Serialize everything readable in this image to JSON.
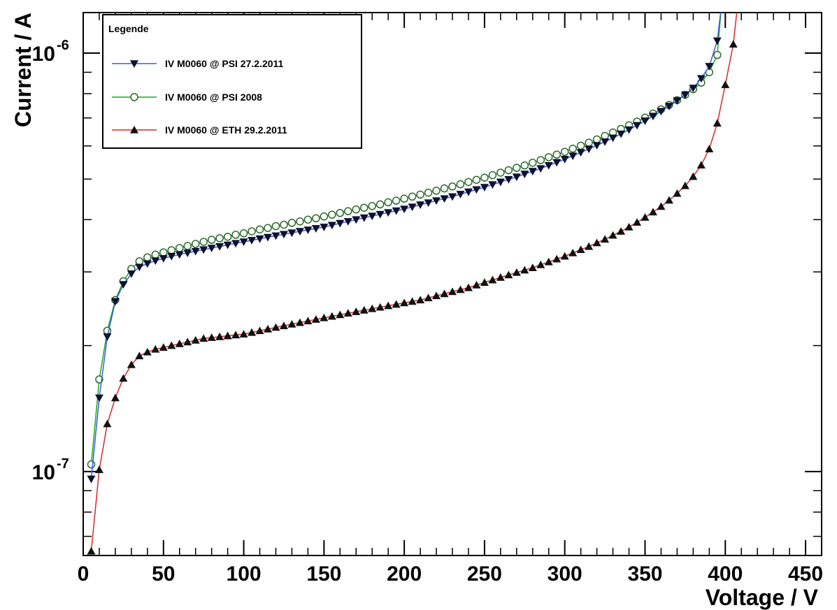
{
  "chart_data": {
    "type": "scatter",
    "xlabel": "Voltage / V",
    "ylabel": "Current / A",
    "xlim": [
      0,
      460
    ],
    "ylim": [
      6.3e-08,
      1.25e-06
    ],
    "ylog": true,
    "x_ticks": [
      0,
      50,
      100,
      150,
      200,
      250,
      300,
      350,
      400,
      450
    ],
    "x_tick_labels": [
      "0",
      "50",
      "100",
      "150",
      "200",
      "250",
      "300",
      "350",
      "400",
      "450"
    ],
    "y_ticks": [
      1e-07,
      1e-06
    ],
    "y_tick_labels": [
      {
        "base": "10",
        "exp": "-7"
      },
      {
        "base": "10",
        "exp": "-6"
      }
    ],
    "legend": {
      "title": "Legende",
      "position": "top-left"
    },
    "x": [
      5,
      10,
      15,
      20,
      25,
      30,
      35,
      40,
      45,
      50,
      55,
      60,
      65,
      70,
      75,
      80,
      85,
      90,
      95,
      100,
      105,
      110,
      115,
      120,
      125,
      130,
      135,
      140,
      145,
      150,
      155,
      160,
      165,
      170,
      175,
      180,
      185,
      190,
      195,
      200,
      205,
      210,
      215,
      220,
      225,
      230,
      235,
      240,
      245,
      250,
      255,
      260,
      265,
      270,
      275,
      280,
      285,
      290,
      295,
      300,
      305,
      310,
      315,
      320,
      325,
      330,
      335,
      340,
      345,
      350,
      355,
      360,
      365,
      370,
      375,
      380,
      385,
      390,
      395,
      400,
      405
    ],
    "series": [
      {
        "name": "IV M0060 @ PSI 27.2.2011",
        "color": "#3b5bdb",
        "marker": "triangle-down",
        "values": [
          9.6e-08,
          1.5e-07,
          2.1e-07,
          2.55e-07,
          2.8e-07,
          2.97e-07,
          3.08e-07,
          3.14e-07,
          3.19e-07,
          3.23e-07,
          3.27e-07,
          3.3e-07,
          3.33e-07,
          3.36e-07,
          3.39e-07,
          3.42e-07,
          3.45e-07,
          3.48e-07,
          3.51e-07,
          3.54e-07,
          3.57e-07,
          3.6e-07,
          3.63e-07,
          3.66e-07,
          3.69e-07,
          3.72e-07,
          3.75e-07,
          3.78e-07,
          3.81e-07,
          3.84e-07,
          3.88e-07,
          3.92e-07,
          3.96e-07,
          4e-07,
          4.04e-07,
          4.08e-07,
          4.12e-07,
          4.16e-07,
          4.2e-07,
          4.24e-07,
          4.29e-07,
          4.34e-07,
          4.39e-07,
          4.44e-07,
          4.49e-07,
          4.54e-07,
          4.6e-07,
          4.66e-07,
          4.72e-07,
          4.78e-07,
          4.85e-07,
          4.92e-07,
          4.99e-07,
          5.06e-07,
          5.14e-07,
          5.22e-07,
          5.3e-07,
          5.39e-07,
          5.48e-07,
          5.58e-07,
          5.68e-07,
          5.79e-07,
          5.9e-07,
          6.02e-07,
          6.14e-07,
          6.27e-07,
          6.41e-07,
          6.56e-07,
          6.72e-07,
          6.89e-07,
          7.07e-07,
          7.26e-07,
          7.47e-07,
          7.7e-07,
          7.95e-07,
          8.25e-07,
          8.7e-07,
          9.3e-07,
          1.07e-06,
          null,
          null
        ]
      },
      {
        "name": "IV M0060 @ PSI 2008",
        "color": "#22a722",
        "marker": "circle-open",
        "values": [
          1.04e-07,
          1.66e-07,
          2.17e-07,
          2.57e-07,
          2.85e-07,
          3.05e-07,
          3.18e-07,
          3.25e-07,
          3.3e-07,
          3.34e-07,
          3.38e-07,
          3.42e-07,
          3.46e-07,
          3.5e-07,
          3.54e-07,
          3.58e-07,
          3.61e-07,
          3.64e-07,
          3.68e-07,
          3.71e-07,
          3.75e-07,
          3.79e-07,
          3.82e-07,
          3.86e-07,
          3.89e-07,
          3.93e-07,
          3.96e-07,
          4e-07,
          4.03e-07,
          4.07e-07,
          4.11e-07,
          4.15e-07,
          4.19e-07,
          4.23e-07,
          4.27e-07,
          4.31e-07,
          4.35e-07,
          4.4e-07,
          4.44e-07,
          4.49e-07,
          4.54e-07,
          4.59e-07,
          4.64e-07,
          4.69e-07,
          4.75e-07,
          4.8e-07,
          4.86e-07,
          4.92e-07,
          4.98e-07,
          5.04e-07,
          5.11e-07,
          5.18e-07,
          5.25e-07,
          5.32e-07,
          5.39e-07,
          5.47e-07,
          5.55e-07,
          5.64e-07,
          5.72e-07,
          5.81e-07,
          5.91e-07,
          6.01e-07,
          6.11e-07,
          6.22e-07,
          6.34e-07,
          6.46e-07,
          6.59e-07,
          6.72e-07,
          6.86e-07,
          7.01e-07,
          7.17e-07,
          7.34e-07,
          7.52e-07,
          7.72e-07,
          7.95e-07,
          8.2e-07,
          8.5e-07,
          9e-07,
          9.9e-07,
          null,
          null
        ]
      },
      {
        "name": "IV M0060 @ ETH 29.2.2011",
        "color": "#d42a2a",
        "marker": "triangle-up",
        "values": [
          6.45e-08,
          1.01e-07,
          1.3e-07,
          1.5e-07,
          1.67e-07,
          1.8e-07,
          1.89e-07,
          1.93e-07,
          1.96e-07,
          1.98e-07,
          2e-07,
          2.02e-07,
          2.04e-07,
          2.06e-07,
          2.08e-07,
          2.09e-07,
          2.1e-07,
          2.11e-07,
          2.12e-07,
          2.13e-07,
          2.15e-07,
          2.17e-07,
          2.19e-07,
          2.21e-07,
          2.23e-07,
          2.25e-07,
          2.27e-07,
          2.29e-07,
          2.31e-07,
          2.33e-07,
          2.35e-07,
          2.37e-07,
          2.39e-07,
          2.41e-07,
          2.43e-07,
          2.45e-07,
          2.47e-07,
          2.49e-07,
          2.51e-07,
          2.53e-07,
          2.55e-07,
          2.57e-07,
          2.6e-07,
          2.63e-07,
          2.66e-07,
          2.69e-07,
          2.72e-07,
          2.75e-07,
          2.79e-07,
          2.83e-07,
          2.87e-07,
          2.91e-07,
          2.95e-07,
          2.99e-07,
          3.03e-07,
          3.07e-07,
          3.12e-07,
          3.17e-07,
          3.22e-07,
          3.27e-07,
          3.33e-07,
          3.39e-07,
          3.45e-07,
          3.52e-07,
          3.59e-07,
          3.67e-07,
          3.75e-07,
          3.84e-07,
          3.94e-07,
          4.05e-07,
          4.17e-07,
          4.3e-07,
          4.45e-07,
          4.62e-07,
          4.82e-07,
          5.07e-07,
          5.4e-07,
          5.9e-07,
          6.8e-07,
          8.4e-07,
          1.05e-06
        ]
      }
    ]
  }
}
